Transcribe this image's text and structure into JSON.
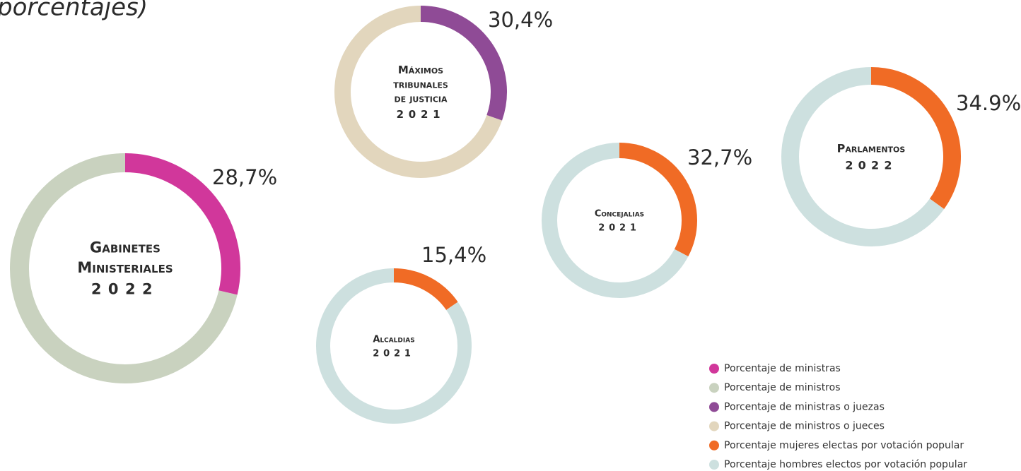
{
  "title_fragment": "porcentajes)",
  "legend": [
    {
      "name": "Porcentaje de ministras",
      "color": "#d1379b"
    },
    {
      "name": "Porcentaje de ministros",
      "color": "#c9d2bf"
    },
    {
      "name": "Porcentaje de ministras o juezas",
      "color": "#8f4b96"
    },
    {
      "name": "Porcentaje de ministros o jueces",
      "color": "#e2d6bd"
    },
    {
      "name": "Porcentaje mujeres electas por votación popular",
      "color": "#f06b25"
    },
    {
      "name": "Porcentaje hombres electos por votación popular",
      "color": "#cde0df"
    }
  ],
  "chart_data": [
    {
      "type": "pie",
      "title_lines": [
        "Gabinetes",
        "Ministeriales"
      ],
      "year": "2022",
      "values": [
        28.7,
        71.3
      ],
      "value_labels": [
        "28,7%",
        null
      ],
      "colors": [
        "#d1379b",
        "#c9d2bf"
      ]
    },
    {
      "type": "pie",
      "title_lines": [
        "Máximos",
        "tribunales",
        "de justicia"
      ],
      "year": "2021",
      "values": [
        30.4,
        69.6
      ],
      "value_labels": [
        "30,4%",
        null
      ],
      "colors": [
        "#8f4b96",
        "#e2d6bd"
      ]
    },
    {
      "type": "pie",
      "title_lines": [
        "Alcaldias"
      ],
      "year": "2021",
      "values": [
        15.4,
        84.6
      ],
      "value_labels": [
        "15,4%",
        null
      ],
      "colors": [
        "#f06b25",
        "#cde0df"
      ]
    },
    {
      "type": "pie",
      "title_lines": [
        "Concejalias"
      ],
      "year": "2021",
      "values": [
        32.7,
        67.3
      ],
      "value_labels": [
        "32,7%",
        null
      ],
      "colors": [
        "#f06b25",
        "#cde0df"
      ]
    },
    {
      "type": "pie",
      "title_lines": [
        "Parlamentos"
      ],
      "year": "2022",
      "values": [
        34.9,
        65.1
      ],
      "value_labels": [
        "34.9%",
        null
      ],
      "colors": [
        "#f06b25",
        "#cde0df"
      ]
    }
  ]
}
